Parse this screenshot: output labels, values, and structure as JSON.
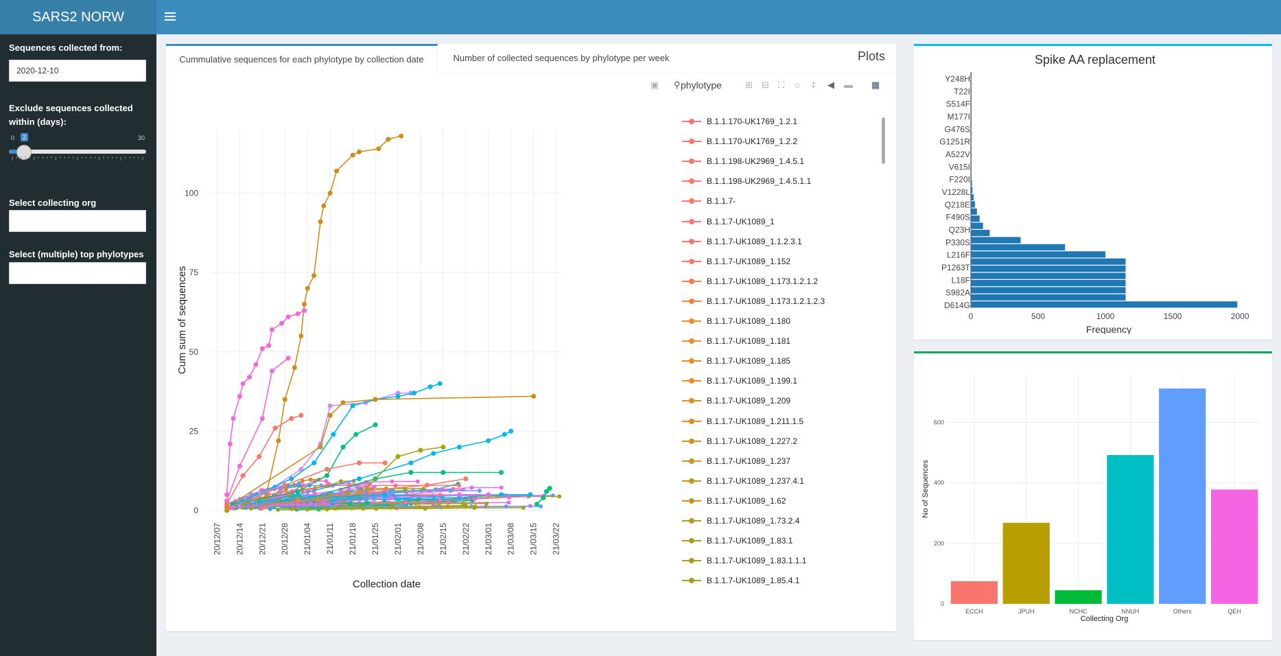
{
  "app": {
    "brand": "SARS2 NORW"
  },
  "sidebar": {
    "from_label": "Sequences collected from:",
    "from_value": "2020-12-10",
    "exclude_label": "Exclude sequences collected within (days):",
    "slider": {
      "min_label": "0",
      "max_label": "30",
      "value_label": "2",
      "value": 2,
      "min": 0,
      "max": 30
    },
    "org_label": "Select collecting org",
    "org_value": "",
    "phylo_label": "Select (multiple) top phylotypes",
    "phylo_value": ""
  },
  "main": {
    "tabs": [
      {
        "label": "Cummulative sequences for each phylotype by collection date"
      },
      {
        "label": "Number of collected sequences by phylotype per week"
      }
    ],
    "box_title": "Plots",
    "modebar": [
      "camera-icon",
      "zoom-icon",
      "pan-icon",
      "select-icon",
      "lasso-icon",
      "zoom-in-icon",
      "zoom-out-icon",
      "autoscale-icon",
      "home-icon",
      "spike-icon",
      "hover-closest-icon",
      "hover-compare-icon",
      "plotly-logo-icon"
    ],
    "legend_title": "phylotype"
  },
  "colors": {
    "header": "#3c8dbc",
    "brand_bg": "#367fa9",
    "sidebar": "#222d32",
    "box_top_blue": "#3c8dbc",
    "box_top_cyan": "#00c0ef",
    "box_top_green": "#00a65a"
  },
  "chart_data": [
    {
      "type": "line",
      "title": "",
      "xlabel": "Collection date",
      "ylabel": "Cum sum of sequences",
      "x_ticks": [
        "20/12/07",
        "20/12/14",
        "20/12/21",
        "20/12/28",
        "21/01/04",
        "21/01/11",
        "21/01/18",
        "21/01/25",
        "21/02/01",
        "21/02/08",
        "21/02/15",
        "21/02/22",
        "21/03/01",
        "21/03/08",
        "21/03/15",
        "21/03/22"
      ],
      "y_ticks": [
        "0",
        "25",
        "50",
        "75",
        "100"
      ],
      "ylim": [
        0,
        120
      ],
      "xlim": [
        "2020-12-05",
        "2021-03-24"
      ],
      "legend_title": "phylotype",
      "legend": [
        "B.1.1.170-UK1769_1.2.1",
        "B.1.1.170-UK1769_1.2.2",
        "B.1.1.198-UK2969_1.4.5.1",
        "B.1.1.198-UK2969_1.4.5.1.1",
        "B.1.1.7-",
        "B.1.1.7-UK1089_1",
        "B.1.1.7-UK1089_1.1.2.3.1",
        "B.1.1.7-UK1089_1.152",
        "B.1.1.7-UK1089_1.173.1.2.1.2",
        "B.1.1.7-UK1089_1.173.1.2.1.2.3",
        "B.1.1.7-UK1089_1.180",
        "B.1.1.7-UK1089_1.181",
        "B.1.1.7-UK1089_1.185",
        "B.1.1.7-UK1089_1.199.1",
        "B.1.1.7-UK1089_1.209",
        "B.1.1.7-UK1089_1.211.1.5",
        "B.1.1.7-UK1089_1.227.2",
        "B.1.1.7-UK1089_1.237",
        "B.1.1.7-UK1089_1.237.4.1",
        "B.1.1.7-UK1089_1.62",
        "B.1.1.7-UK1089_1.73.2.4",
        "B.1.1.7-UK1089_1.83.1",
        "B.1.1.7-UK1089_1.83.1.1.1",
        "B.1.1.7-UK1089_1.85.4.1"
      ],
      "legend_colors": [
        "#f8766d",
        "#f8766d",
        "#f8766d",
        "#f8766d",
        "#f8766d",
        "#f8766d",
        "#f8766d",
        "#f8766d",
        "#f57f46",
        "#f57f46",
        "#f08a2a",
        "#ec8b26",
        "#e88c23",
        "#e48d23",
        "#df8e23",
        "#d99022",
        "#d39222",
        "#cc9421",
        "#c59621",
        "#bd9821",
        "#b69a21",
        "#ad9c21",
        "#a79e22",
        "#a2a022"
      ],
      "series": [
        {
          "color": "#cb8e1b",
          "points": [
            [
              "2020-12-10",
              0
            ],
            [
              "2020-12-16",
              2
            ],
            [
              "2020-12-22",
              4
            ],
            [
              "2020-12-26",
              22
            ],
            [
              "2020-12-28",
              35
            ],
            [
              "2020-12-31",
              45
            ],
            [
              "2021-01-02",
              55
            ],
            [
              "2021-01-03",
              65
            ],
            [
              "2021-01-04",
              70
            ],
            [
              "2021-01-06",
              74
            ],
            [
              "2021-01-08",
              91
            ],
            [
              "2021-01-09",
              96
            ],
            [
              "2021-01-11",
              100
            ],
            [
              "2021-01-13",
              107
            ],
            [
              "2021-01-18",
              112
            ],
            [
              "2021-01-20",
              113
            ],
            [
              "2021-01-26",
              114
            ],
            [
              "2021-01-29",
              117
            ],
            [
              "2021-02-02",
              118
            ]
          ]
        },
        {
          "color": "#f765d8",
          "points": [
            [
              "2020-12-10",
              5
            ],
            [
              "2020-12-11",
              21
            ],
            [
              "2020-12-12",
              29
            ],
            [
              "2020-12-14",
              36
            ],
            [
              "2020-12-15",
              40
            ],
            [
              "2020-12-17",
              42
            ],
            [
              "2020-12-19",
              46
            ],
            [
              "2020-12-21",
              51
            ],
            [
              "2020-12-23",
              52
            ],
            [
              "2020-12-24",
              57
            ],
            [
              "2020-12-27",
              59
            ],
            [
              "2020-12-29",
              61
            ],
            [
              "2021-01-01",
              62
            ],
            [
              "2021-01-03",
              63
            ]
          ]
        },
        {
          "color": "#f765d8",
          "points": [
            [
              "2020-12-10",
              3
            ],
            [
              "2020-12-14",
              14
            ],
            [
              "2020-12-21",
              29
            ],
            [
              "2020-12-24",
              44
            ],
            [
              "2020-12-29",
              48
            ]
          ]
        },
        {
          "color": "#f8766d",
          "points": [
            [
              "2020-12-10",
              2
            ],
            [
              "2020-12-15",
              11
            ],
            [
              "2020-12-20",
              17
            ],
            [
              "2020-12-25",
              26
            ],
            [
              "2020-12-30",
              29
            ],
            [
              "2021-01-02",
              30
            ]
          ]
        },
        {
          "color": "#ca8dff",
          "points": [
            [
              "2020-12-18",
              3
            ],
            [
              "2021-01-02",
              13
            ],
            [
              "2021-01-08",
              21
            ],
            [
              "2021-01-11",
              33
            ],
            [
              "2021-01-22",
              34
            ],
            [
              "2021-02-01",
              37
            ],
            [
              "2021-02-05",
              37
            ]
          ]
        },
        {
          "color": "#00b6eb",
          "points": [
            [
              "2020-12-15",
              3
            ],
            [
              "2020-12-30",
              10
            ],
            [
              "2021-01-06",
              15
            ],
            [
              "2021-01-12",
              24
            ],
            [
              "2021-01-18",
              33
            ],
            [
              "2021-01-25",
              35
            ],
            [
              "2021-02-01",
              36
            ],
            [
              "2021-02-06",
              37
            ],
            [
              "2021-02-11",
              39
            ],
            [
              "2021-02-14",
              40
            ]
          ]
        },
        {
          "color": "#cb8e1b",
          "points": [
            [
              "2020-12-10",
              1
            ],
            [
              "2021-01-08",
              20
            ],
            [
              "2021-01-11",
              30
            ],
            [
              "2021-01-15",
              34
            ],
            [
              "2021-01-25",
              35
            ],
            [
              "2021-03-15",
              36
            ]
          ]
        },
        {
          "color": "#00b6eb",
          "points": [
            [
              "2020-12-12",
              1
            ],
            [
              "2021-01-01",
              5
            ],
            [
              "2021-01-20",
              10
            ],
            [
              "2021-02-05",
              15
            ],
            [
              "2021-02-12",
              18
            ],
            [
              "2021-02-20",
              20
            ],
            [
              "2021-03-01",
              22
            ],
            [
              "2021-03-06",
              24
            ],
            [
              "2021-03-08",
              25
            ]
          ]
        },
        {
          "color": "#00bf7d",
          "points": [
            [
              "2020-12-12",
              2
            ],
            [
              "2021-01-01",
              6
            ],
            [
              "2021-01-10",
              11
            ],
            [
              "2021-01-15",
              20
            ],
            [
              "2021-01-19",
              24
            ],
            [
              "2021-01-25",
              27
            ]
          ]
        },
        {
          "color": "#00bf7d",
          "points": [
            [
              "2020-12-13",
              1
            ],
            [
              "2021-01-05",
              4
            ],
            [
              "2021-01-25",
              10
            ],
            [
              "2021-02-05",
              12
            ],
            [
              "2021-02-15",
              12
            ],
            [
              "2021-03-05",
              12
            ]
          ]
        },
        {
          "color": "#f8766d",
          "points": [
            [
              "2020-12-11",
              1
            ],
            [
              "2020-12-28",
              8
            ],
            [
              "2021-01-10",
              13
            ],
            [
              "2021-01-20",
              15
            ],
            [
              "2021-01-28",
              15
            ]
          ]
        },
        {
          "color": "#a3a500",
          "points": [
            [
              "2020-12-15",
              1
            ],
            [
              "2021-01-20",
              5
            ],
            [
              "2021-02-01",
              17
            ],
            [
              "2021-02-08",
              19
            ],
            [
              "2021-02-15",
              20
            ]
          ]
        },
        {
          "color": "#00b6eb",
          "points": [
            [
              "2020-12-16",
              1
            ],
            [
              "2021-01-05",
              4
            ],
            [
              "2021-01-28",
              5
            ],
            [
              "2021-02-20",
              4
            ],
            [
              "2021-03-05",
              5
            ],
            [
              "2021-03-14",
              5
            ]
          ]
        },
        {
          "color": "#00bf7d",
          "points": [
            [
              "2021-03-16",
              2
            ],
            [
              "2021-03-18",
              4
            ],
            [
              "2021-03-19",
              6
            ],
            [
              "2021-03-20",
              7
            ]
          ]
        },
        {
          "color": "#f8766d",
          "points": [
            [
              "2020-12-11",
              1
            ],
            [
              "2021-01-01",
              3
            ],
            [
              "2021-01-20",
              6
            ],
            [
              "2021-02-10",
              8
            ],
            [
              "2021-02-22",
              10
            ]
          ]
        },
        {
          "color": "#e76bf3",
          "points": [
            [
              "2020-12-12",
              1
            ],
            [
              "2021-01-05",
              2
            ],
            [
              "2021-01-30",
              4
            ],
            [
              "2021-02-20",
              5
            ],
            [
              "2021-03-01",
              5
            ]
          ]
        }
      ],
      "background_cloud": "dense cluster of low-valued lines (0-10) from 2020-12-10 to 2021-03-10"
    },
    {
      "type": "bar",
      "orientation": "horizontal",
      "title": "Spike AA replacement",
      "xlabel": "Frequency",
      "ylabel": "",
      "x_ticks": [
        "0",
        "500",
        "1000",
        "1500",
        "2000"
      ],
      "xlim": [
        0,
        2050
      ],
      "category_labels": [
        "Y248H",
        "T22I",
        "S514F",
        "M177I",
        "G476S",
        "G1251R",
        "A522V",
        "V615I",
        "F220I",
        "V1228L",
        "Q218E",
        "F490S",
        "Q23H",
        "P330S",
        "L216F",
        "P1263T",
        "L18F",
        "S982A",
        "D614G"
      ],
      "values_top_to_bottom": [
        1,
        1,
        1,
        1,
        1,
        1,
        1,
        1,
        1,
        1,
        2,
        2,
        2,
        3,
        5,
        8,
        12,
        20,
        30,
        45,
        65,
        90,
        140,
        370,
        700,
        1000,
        1150,
        1150,
        1150,
        1150,
        1150,
        1150,
        1980
      ]
    },
    {
      "type": "bar",
      "title": "",
      "xlabel": "Collecting Org",
      "ylabel": "No of Sequences",
      "categories": [
        "ECCH",
        "JPUH",
        "NCHC",
        "NNUH",
        "Others",
        "QEH"
      ],
      "values": [
        75,
        268,
        45,
        492,
        712,
        378
      ],
      "colors": [
        "#f8766d",
        "#b79f00",
        "#00ba38",
        "#00bfc4",
        "#619cff",
        "#f564e3"
      ],
      "y_ticks": [
        "0",
        "200",
        "400",
        "600"
      ],
      "ylim": [
        0,
        760
      ]
    }
  ]
}
